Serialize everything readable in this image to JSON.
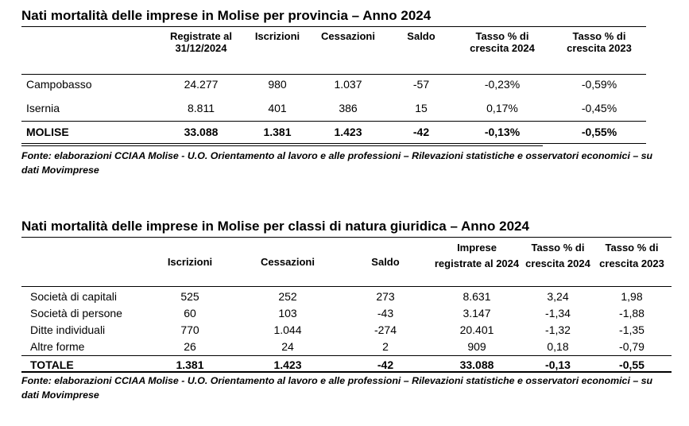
{
  "table1": {
    "title": "Nati mortalità delle imprese in Molise per provincia – Anno 2024",
    "headers": [
      "Registrate al 31/12/2024",
      "Iscrizioni",
      "Cessazioni",
      "Saldo",
      "Tasso % di crescita 2024",
      "Tasso % di crescita 2023"
    ],
    "rows": [
      {
        "label": "Campobasso",
        "values": [
          "24.277",
          "980",
          "1.037",
          "-57",
          "-0,23%",
          "-0,59%"
        ]
      },
      {
        "label": "Isernia",
        "values": [
          "8.811",
          "401",
          "386",
          "15",
          "0,17%",
          "-0,45%"
        ]
      }
    ],
    "total": {
      "label": "MOLISE",
      "values": [
        "33.088",
        "1.381",
        "1.423",
        "-42",
        "-0,13%",
        "-0,55%"
      ]
    },
    "source": "Fonte: elaborazioni CCIAA Molise - U.O. Orientamento al lavoro e alle professioni – Rilevazioni statistiche e osservatori economici – su dati Movimprese"
  },
  "table2": {
    "title": "Nati mortalità delle imprese in Molise per classi di natura giuridica – Anno 2024",
    "headers": [
      "Iscrizioni",
      "Cessazioni",
      "Saldo",
      "Imprese registrate al 2024",
      "Tasso % di crescita 2024",
      "Tasso % di crescita 2023"
    ],
    "rows": [
      {
        "label": "Società di capitali",
        "values": [
          "525",
          "252",
          "273",
          "8.631",
          "3,24",
          "1,98"
        ]
      },
      {
        "label": "Società di persone",
        "values": [
          "60",
          "103",
          "-43",
          "3.147",
          "-1,34",
          "-1,88"
        ]
      },
      {
        "label": "Ditte individuali",
        "values": [
          "770",
          "1.044",
          "-274",
          "20.401",
          "-1,32",
          "-1,35"
        ]
      },
      {
        "label": "Altre forme",
        "values": [
          "26",
          "24",
          "2",
          "909",
          "0,18",
          "-0,79"
        ]
      }
    ],
    "total": {
      "label": "TOTALE",
      "values": [
        "1.381",
        "1.423",
        "-42",
        "33.088",
        "-0,13",
        "-0,55"
      ]
    },
    "source": "Fonte: elaborazioni CCIAA Molise - U.O. Orientamento al lavoro e alle professioni – Rilevazioni statistiche e osservatori economici – su dati Movimprese"
  }
}
